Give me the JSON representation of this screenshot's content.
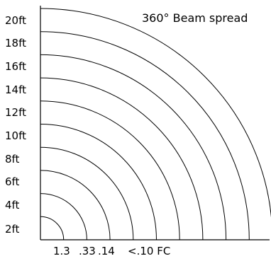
{
  "diagram": {
    "title": "360° Beam spread",
    "distance_labels": [
      "2ft",
      "4ft",
      "6ft",
      "8ft",
      "10ft",
      "12ft",
      "14ft",
      "16ft",
      "18ft",
      "20ft"
    ],
    "footcandle_labels": [
      "1.3",
      ".33",
      ".14",
      "<.10 FC"
    ],
    "line_color": "#000000",
    "background_color": "#ffffff"
  }
}
